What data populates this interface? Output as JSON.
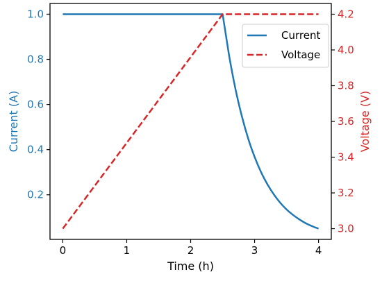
{
  "chart_data": {
    "type": "line",
    "title": "",
    "xlabel": "Time (h)",
    "xlim": [
      -0.2,
      4.2
    ],
    "xticks": [
      0,
      1,
      2,
      3,
      4
    ],
    "x_tick_labels": [
      "0",
      "1",
      "2",
      "3",
      "4"
    ],
    "grid": false,
    "legend_position": "top-right",
    "left_axis": {
      "label": "Current (A)",
      "color": "#1f77b4",
      "ylim": [
        0.0025,
        1.0475
      ],
      "ticks": [
        0.2,
        0.4,
        0.6,
        0.8,
        1.0
      ],
      "tick_labels": [
        "0.2",
        "0.4",
        "0.6",
        "0.8",
        "1.0"
      ]
    },
    "right_axis": {
      "label": "Voltage (V)",
      "color": "#d62728",
      "ylim": [
        2.94,
        4.26
      ],
      "ticks": [
        3.0,
        3.2,
        3.4,
        3.6,
        3.8,
        4.0,
        4.2
      ],
      "tick_labels": [
        "3.0",
        "3.2",
        "3.4",
        "3.6",
        "3.8",
        "4.0",
        "4.2"
      ]
    },
    "series": [
      {
        "name": "Current",
        "axis": "left",
        "style": "solid",
        "color": "#1f77b4",
        "x": [
          0,
          0.5,
          1.0,
          1.5,
          2.0,
          2.5,
          2.6,
          2.7,
          2.8,
          2.9,
          3.0,
          3.1,
          3.2,
          3.3,
          3.4,
          3.5,
          3.6,
          3.7,
          3.8,
          3.9,
          4.0
        ],
        "y": [
          1.0,
          1.0,
          1.0,
          1.0,
          1.0,
          1.0,
          0.819,
          0.67,
          0.549,
          0.449,
          0.368,
          0.301,
          0.247,
          0.202,
          0.165,
          0.135,
          0.111,
          0.091,
          0.074,
          0.061,
          0.05
        ]
      },
      {
        "name": "Voltage",
        "axis": "right",
        "style": "dashed",
        "color": "#d62728",
        "x": [
          0,
          2.5,
          4.0
        ],
        "y": [
          3.0,
          4.2,
          4.2
        ]
      }
    ]
  }
}
